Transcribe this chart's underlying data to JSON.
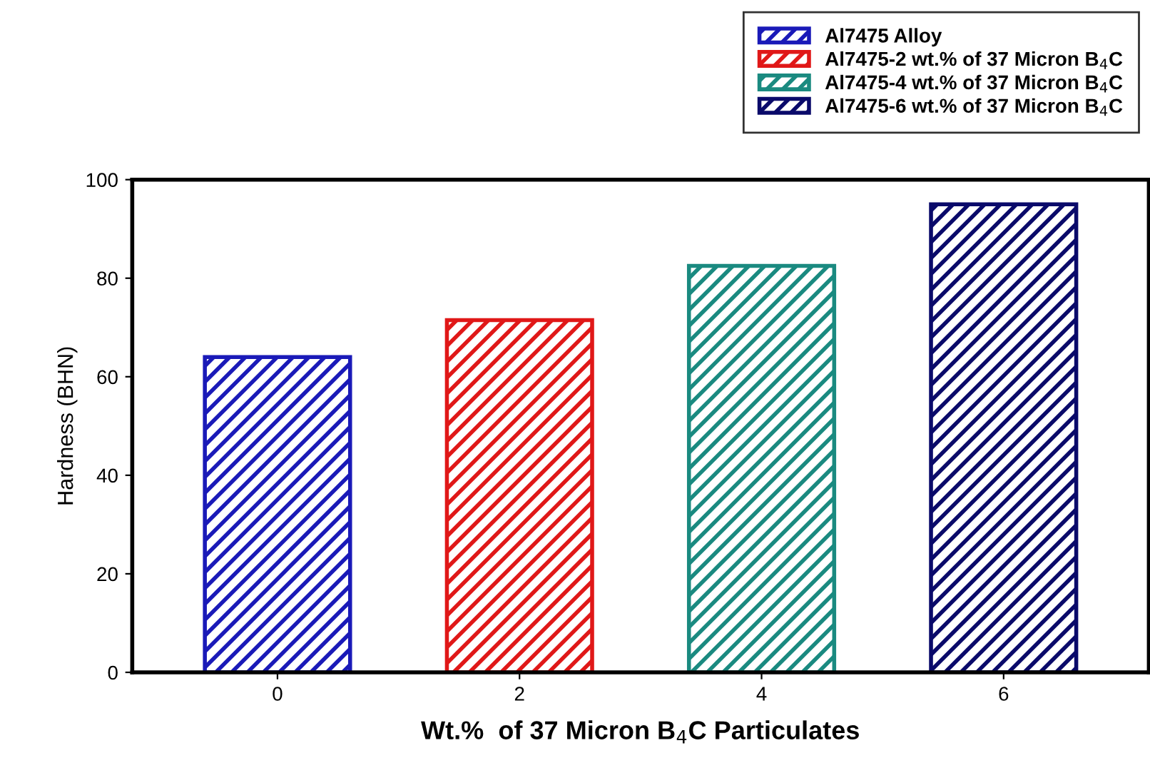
{
  "chart_data": {
    "type": "bar",
    "xlabel": "Wt.%  of 37 Micron B$_{4}$C Particulates",
    "ylabel": "Hardness (BHN)",
    "categories": [
      "0",
      "2",
      "4",
      "6"
    ],
    "series": [
      {
        "name": "Al7475 Alloy",
        "color": "#1a1ab8",
        "values": [
          64,
          null,
          null,
          null
        ]
      },
      {
        "name": "Al7475-2 wt.% of 37 Micron B$_{4}$C",
        "color": "#e01818",
        "values": [
          null,
          71.5,
          null,
          null
        ]
      },
      {
        "name": "Al7475-4 wt.% of 37 Micron B$_{4}$C",
        "color": "#1a8a80",
        "values": [
          null,
          null,
          82.5,
          null
        ]
      },
      {
        "name": "Al7475-6 wt.% of 37 Micron B$_{4}$C",
        "color": "#0a0a6a",
        "values": [
          null,
          null,
          null,
          95
        ]
      }
    ],
    "ylim": [
      0,
      100
    ],
    "yticks": [
      0,
      20,
      40,
      60,
      80,
      100
    ],
    "grid": false,
    "legend": "top right"
  }
}
